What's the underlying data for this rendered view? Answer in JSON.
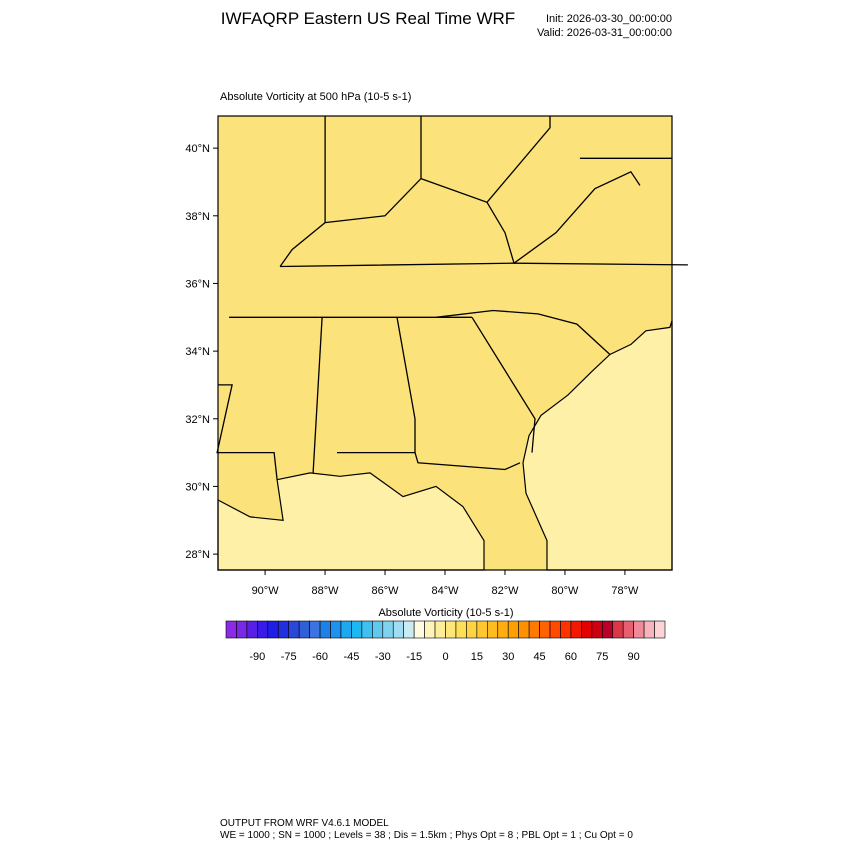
{
  "header": {
    "title": "IWFAQRP Eastern US Real Time WRF",
    "init": "Init: 2026-03-30_00:00:00",
    "valid": "Valid: 2026-03-31_00:00:00"
  },
  "map": {
    "subtitle": "Absolute Vorticity at 500 hPa   (10-5 s-1)",
    "xlim": [
      -91.57,
      -76.43
    ],
    "ylim": [
      27.53,
      40.95
    ],
    "xticks": [
      {
        "value": -90,
        "label": "90°W"
      },
      {
        "value": -88,
        "label": "88°W"
      },
      {
        "value": -86,
        "label": "86°W"
      },
      {
        "value": -84,
        "label": "84°W"
      },
      {
        "value": -82,
        "label": "82°W"
      },
      {
        "value": -80,
        "label": "80°W"
      },
      {
        "value": -78,
        "label": "78°W"
      }
    ],
    "yticks": [
      {
        "value": 28,
        "label": "28°N"
      },
      {
        "value": 30,
        "label": "30°N"
      },
      {
        "value": 32,
        "label": "32°N"
      },
      {
        "value": 34,
        "label": "34°N"
      },
      {
        "value": 36,
        "label": "36°N"
      },
      {
        "value": 38,
        "label": "38°N"
      },
      {
        "value": 40,
        "label": "40°N"
      }
    ]
  },
  "colorbar": {
    "title": "Absolute Vorticity  (10-5 s-1)",
    "lim": [
      -105,
      105
    ],
    "colors": [
      "#8b2be8",
      "#7a28e8",
      "#5a1fe6",
      "#3a1ae8",
      "#1e1ee8",
      "#1e30e0",
      "#2a48d8",
      "#3060d8",
      "#3a74e0",
      "#1e80e8",
      "#1e92f0",
      "#1ea8f0",
      "#1eb8f0",
      "#40c0f0",
      "#62c8ee",
      "#80d2f0",
      "#a0dcf2",
      "#c8ecf4",
      "#fffbe0",
      "#fff4b8",
      "#ffee98",
      "#ffe678",
      "#ffde58",
      "#ffd440",
      "#ffc830",
      "#ffbc20",
      "#ffae10",
      "#ffa000",
      "#ff9000",
      "#ff7a00",
      "#ff6200",
      "#ff4a00",
      "#ff3200",
      "#f41800",
      "#e40000",
      "#cc0010",
      "#b8002a",
      "#d83848",
      "#e86070",
      "#f08a98",
      "#f8b4bc",
      "#fcd4d8"
    ],
    "ticks": [
      -90,
      -75,
      -60,
      -45,
      -30,
      -15,
      0,
      15,
      30,
      45,
      60,
      75,
      90
    ]
  },
  "footer": {
    "line1": "OUTPUT FROM WRF V4.6.1 MODEL",
    "line2": "WE = 1000 ; SN = 1000 ; Levels = 38 ; Dis = 1.5km ; Phys Opt = 8 ; PBL Opt = 1 ; Cu Opt = 0"
  }
}
